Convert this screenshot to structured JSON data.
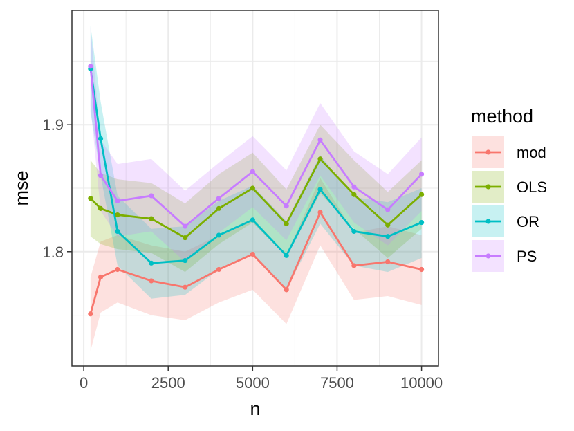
{
  "chart_data": {
    "type": "line",
    "xlabel": "n",
    "ylabel": "mse",
    "xlim": [
      -350,
      10500
    ],
    "ylim": [
      1.71,
      1.99
    ],
    "x_ticks": [
      0,
      2500,
      5000,
      7500,
      10000
    ],
    "x_tick_labels": [
      "0",
      "2500",
      "5000",
      "7500",
      "10000"
    ],
    "y_ticks": [
      1.8,
      1.9
    ],
    "y_tick_labels": [
      "1.8",
      "1.9"
    ],
    "y_minor_ticks": [
      1.75,
      1.85,
      1.95
    ],
    "grid": true,
    "legend": {
      "title": "method",
      "position": "right"
    },
    "x": [
      200,
      500,
      1000,
      2000,
      3000,
      4000,
      5000,
      6000,
      7000,
      8000,
      9000,
      10000
    ],
    "series": [
      {
        "name": "mod",
        "color": "#F8766D",
        "values": [
          1.751,
          1.78,
          1.786,
          1.777,
          1.772,
          1.786,
          1.798,
          1.77,
          1.831,
          1.789,
          1.792,
          1.786
        ],
        "lower": [
          1.722,
          1.752,
          1.76,
          1.75,
          1.746,
          1.76,
          1.77,
          1.743,
          1.805,
          1.762,
          1.765,
          1.758
        ],
        "upper": [
          1.78,
          1.808,
          1.813,
          1.805,
          1.8,
          1.813,
          1.825,
          1.797,
          1.858,
          1.815,
          1.82,
          1.813
        ]
      },
      {
        "name": "OLS",
        "color": "#7CAE00",
        "values": [
          1.842,
          1.834,
          1.829,
          1.826,
          1.811,
          1.834,
          1.85,
          1.822,
          1.873,
          1.845,
          1.821,
          1.845
        ],
        "lower": [
          1.812,
          1.806,
          1.802,
          1.799,
          1.784,
          1.806,
          1.823,
          1.796,
          1.846,
          1.818,
          1.795,
          1.818
        ],
        "upper": [
          1.872,
          1.862,
          1.857,
          1.854,
          1.838,
          1.861,
          1.878,
          1.849,
          1.9,
          1.872,
          1.847,
          1.872
        ]
      },
      {
        "name": "OR",
        "color": "#00BFC4",
        "values": [
          1.944,
          1.889,
          1.816,
          1.791,
          1.793,
          1.813,
          1.825,
          1.797,
          1.849,
          1.816,
          1.812,
          1.823
        ],
        "lower": [
          1.91,
          1.86,
          1.789,
          1.763,
          1.766,
          1.786,
          1.797,
          1.77,
          1.822,
          1.789,
          1.784,
          1.795
        ],
        "upper": [
          1.978,
          1.918,
          1.844,
          1.818,
          1.82,
          1.84,
          1.852,
          1.824,
          1.876,
          1.843,
          1.839,
          1.85
        ]
      },
      {
        "name": "PS",
        "color": "#C77CFF",
        "values": [
          1.946,
          1.86,
          1.84,
          1.844,
          1.82,
          1.842,
          1.863,
          1.836,
          1.888,
          1.851,
          1.833,
          1.861
        ],
        "lower": [
          1.915,
          1.832,
          1.812,
          1.816,
          1.792,
          1.815,
          1.835,
          1.809,
          1.86,
          1.823,
          1.805,
          1.832
        ],
        "upper": [
          1.977,
          1.888,
          1.869,
          1.873,
          1.848,
          1.87,
          1.891,
          1.864,
          1.917,
          1.879,
          1.861,
          1.89
        ]
      }
    ]
  }
}
